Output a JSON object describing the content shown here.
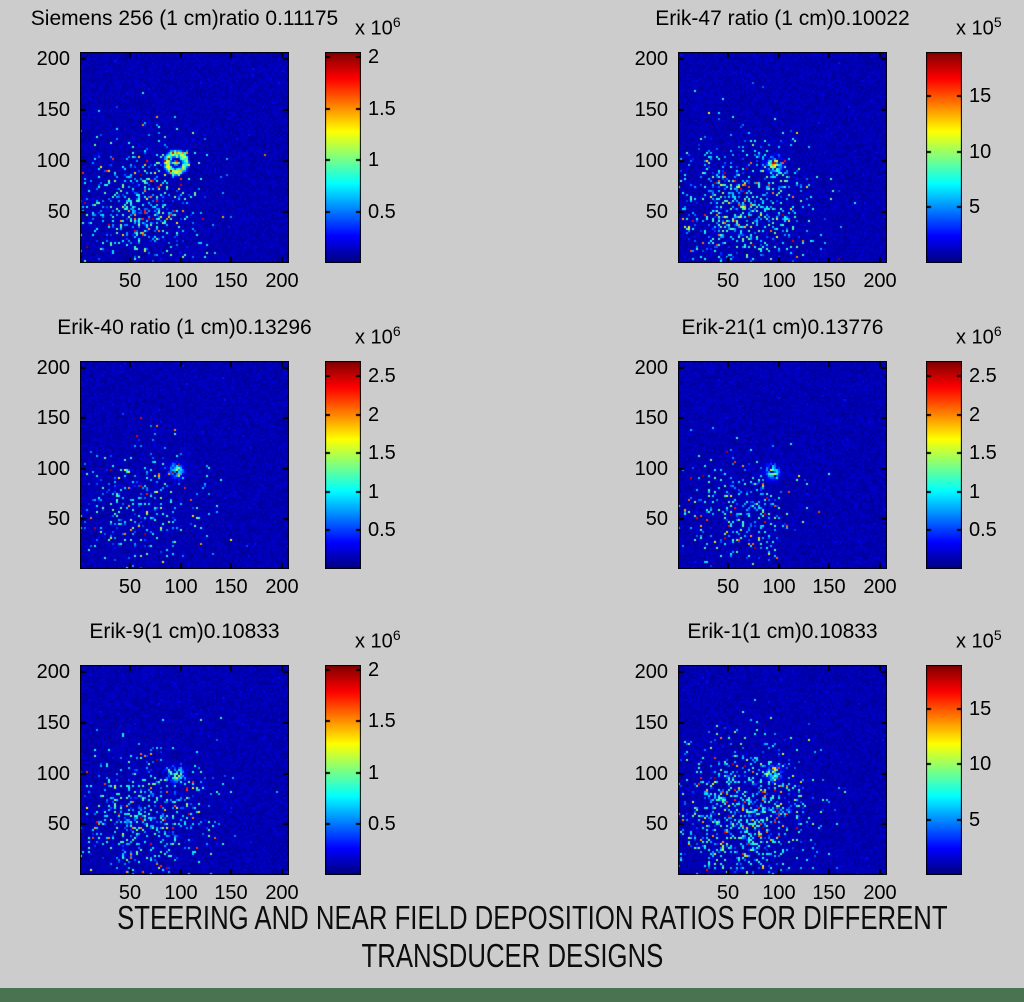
{
  "figure": {
    "background": "#cccccc",
    "footer_bar_color": "#4a7351",
    "caption_line1": "STEERING AND NEAR FIELD DEPOSITION RATIOS FOR DIFFERENT",
    "caption_line2": "TRANSDUCER DESIGNS"
  },
  "chart_data": [
    {
      "type": "heatmap",
      "title": "Siemens 256 (1 cm)ratio 0.11175",
      "ratio": 0.11175,
      "colormap": "jet",
      "x_ticks": [
        50,
        100,
        150,
        200
      ],
      "y_ticks": [
        200,
        150,
        100,
        50
      ],
      "axis_max": 207,
      "colorbar": {
        "exponent_prefix": "x 10",
        "exponent": "6",
        "scale": 1000000,
        "ticks": [
          2,
          1.5,
          1,
          0.5
        ],
        "max": 2.05
      },
      "features": {
        "background": "dark blue noise field",
        "hotspot": {
          "shape": "ring",
          "x": 95,
          "y": 99,
          "radius": 9,
          "intensity": 0.7
        },
        "cluster": {
          "x": 62,
          "y": 58,
          "sigma": 34,
          "density": 0.3
        }
      }
    },
    {
      "type": "heatmap",
      "title": "Erik-47 ratio (1 cm)0.10022",
      "ratio": 0.10022,
      "colormap": "jet",
      "x_ticks": [
        50,
        100,
        150,
        200
      ],
      "y_ticks": [
        200,
        150,
        100,
        50
      ],
      "axis_max": 207,
      "colorbar": {
        "exponent_prefix": "x 10",
        "exponent": "5",
        "scale": 100000,
        "ticks": [
          15,
          10,
          5
        ],
        "max": 19
      },
      "features": {
        "background": "dark blue noise field",
        "hotspot": {
          "shape": "blob",
          "x": 95,
          "y": 97,
          "radius": 6,
          "intensity": 0.9
        },
        "cluster": {
          "x": 62,
          "y": 55,
          "sigma": 36,
          "density": 0.32
        }
      }
    },
    {
      "type": "heatmap",
      "title": "Erik-40 ratio (1 cm)0.13296",
      "ratio": 0.13296,
      "colormap": "jet",
      "x_ticks": [
        50,
        100,
        150,
        200
      ],
      "y_ticks": [
        200,
        150,
        100,
        50
      ],
      "axis_max": 207,
      "colorbar": {
        "exponent_prefix": "x 10",
        "exponent": "6",
        "scale": 1000000,
        "ticks": [
          2.5,
          2,
          1.5,
          1,
          0.5
        ],
        "max": 2.7
      },
      "features": {
        "background": "dark blue noise field",
        "hotspot": {
          "shape": "blob",
          "x": 95,
          "y": 98,
          "radius": 6,
          "intensity": 0.65
        },
        "cluster": {
          "x": 60,
          "y": 60,
          "sigma": 33,
          "density": 0.16
        }
      }
    },
    {
      "type": "heatmap",
      "title": "Erik-21(1 cm)0.13776",
      "ratio": 0.13776,
      "colormap": "jet",
      "x_ticks": [
        50,
        100,
        150,
        200
      ],
      "y_ticks": [
        200,
        150,
        100,
        50
      ],
      "axis_max": 207,
      "colorbar": {
        "exponent_prefix": "x 10",
        "exponent": "6",
        "scale": 1000000,
        "ticks": [
          2.5,
          2,
          1.5,
          1,
          0.5
        ],
        "max": 2.7
      },
      "features": {
        "background": "dark blue noise field",
        "hotspot": {
          "shape": "blob",
          "x": 93,
          "y": 97,
          "radius": 5,
          "intensity": 0.7
        },
        "cluster": {
          "x": 62,
          "y": 58,
          "sigma": 32,
          "density": 0.18
        }
      }
    },
    {
      "type": "heatmap",
      "title": "Erik-9(1 cm)0.10833",
      "ratio": 0.10833,
      "colormap": "jet",
      "x_ticks": [
        50,
        100,
        150,
        200
      ],
      "y_ticks": [
        200,
        150,
        100,
        50
      ],
      "axis_max": 207,
      "colorbar": {
        "exponent_prefix": "x 10",
        "exponent": "6",
        "scale": 1000000,
        "ticks": [
          2,
          1.5,
          1,
          0.5
        ],
        "max": 2.05
      },
      "features": {
        "background": "dark blue noise field",
        "hotspot": {
          "shape": "blob",
          "x": 95,
          "y": 99,
          "radius": 6,
          "intensity": 0.85
        },
        "cluster": {
          "x": 65,
          "y": 60,
          "sigma": 34,
          "density": 0.3
        }
      }
    },
    {
      "type": "heatmap",
      "title": "Erik-1(1 cm)0.10833",
      "ratio": 0.10833,
      "colormap": "jet",
      "x_ticks": [
        50,
        100,
        150,
        200
      ],
      "y_ticks": [
        200,
        150,
        100,
        50
      ],
      "axis_max": 207,
      "colorbar": {
        "exponent_prefix": "x 10",
        "exponent": "5",
        "scale": 100000,
        "ticks": [
          15,
          10,
          5
        ],
        "max": 19
      },
      "features": {
        "background": "dark blue noise field",
        "hotspot": {
          "shape": "blob",
          "x": 95,
          "y": 100,
          "radius": 6,
          "intensity": 0.85
        },
        "cluster": {
          "x": 66,
          "y": 62,
          "sigma": 36,
          "density": 0.38
        }
      }
    }
  ]
}
